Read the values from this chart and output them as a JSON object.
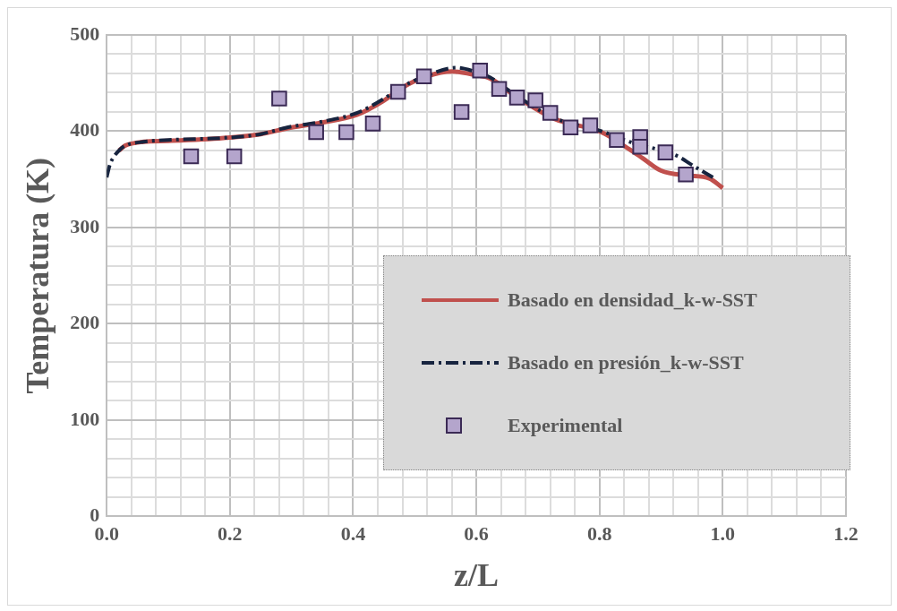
{
  "chart_data": {
    "type": "line",
    "xlabel": "z/L",
    "ylabel": "Temperatura (K)",
    "xlim": [
      0,
      1.2
    ],
    "ylim": [
      0,
      500
    ],
    "xticks": [
      {
        "value": 0,
        "label": "0.0"
      },
      {
        "value": 0.04,
        "label": null
      },
      {
        "value": 0.08,
        "label": null
      },
      {
        "value": 0.12,
        "label": null
      },
      {
        "value": 0.16,
        "label": null
      },
      {
        "value": 0.2,
        "label": "0.2"
      },
      {
        "value": 0.24,
        "label": null
      },
      {
        "value": 0.28,
        "label": null
      },
      {
        "value": 0.32,
        "label": null
      },
      {
        "value": 0.36,
        "label": null
      },
      {
        "value": 0.4,
        "label": "0.4"
      },
      {
        "value": 0.44,
        "label": null
      },
      {
        "value": 0.48,
        "label": null
      },
      {
        "value": 0.52,
        "label": null
      },
      {
        "value": 0.56,
        "label": null
      },
      {
        "value": 0.6,
        "label": "0.6"
      },
      {
        "value": 0.64,
        "label": null
      },
      {
        "value": 0.68,
        "label": null
      },
      {
        "value": 0.72,
        "label": null
      },
      {
        "value": 0.76,
        "label": null
      },
      {
        "value": 0.8,
        "label": "0.8"
      },
      {
        "value": 0.84,
        "label": null
      },
      {
        "value": 0.88,
        "label": null
      },
      {
        "value": 0.92,
        "label": null
      },
      {
        "value": 0.96,
        "label": null
      },
      {
        "value": 1.0,
        "label": "1.0"
      },
      {
        "value": 1.04,
        "label": null
      },
      {
        "value": 1.08,
        "label": null
      },
      {
        "value": 1.12,
        "label": null
      },
      {
        "value": 1.16,
        "label": null
      },
      {
        "value": 1.2,
        "label": "1.2"
      }
    ],
    "yticks": [
      0,
      {
        "value": 20,
        "label": null
      },
      {
        "value": 40,
        "label": null
      },
      {
        "value": 60,
        "label": null
      },
      {
        "value": 80,
        "label": null
      },
      100,
      {
        "value": 120,
        "label": null
      },
      {
        "value": 140,
        "label": null
      },
      {
        "value": 160,
        "label": null
      },
      {
        "value": 180,
        "label": null
      },
      200,
      {
        "value": 220,
        "label": null
      },
      {
        "value": 240,
        "label": null
      },
      {
        "value": 260,
        "label": null
      },
      {
        "value": 280,
        "label": null
      },
      300,
      {
        "value": 320,
        "label": null
      },
      {
        "value": 340,
        "label": null
      },
      {
        "value": 360,
        "label": null
      },
      {
        "value": 380,
        "label": null
      },
      400,
      {
        "value": 420,
        "label": null
      },
      {
        "value": 440,
        "label": null
      },
      {
        "value": 460,
        "label": null
      },
      {
        "value": 480,
        "label": null
      },
      500
    ],
    "grid": true,
    "legend": "bottom right",
    "series": [
      {
        "name": "Basado en densidad_k-w-SST",
        "color": "#c0504d",
        "marker": "none",
        "line_style": "solid",
        "x": [
          0.02,
          0.03,
          0.06,
          0.1,
          0.19,
          0.25,
          0.293,
          0.35,
          0.406,
          0.448,
          0.479,
          0.52,
          0.561,
          0.602,
          0.622,
          0.66,
          0.726,
          0.803,
          0.849,
          0.87,
          0.9,
          0.942,
          0.978,
          1.0
        ],
        "values": [
          380,
          385,
          389,
          390,
          393,
          397,
          403,
          409,
          417,
          431,
          445,
          457,
          462,
          458,
          455,
          438,
          413,
          399,
          381,
          372,
          359,
          354,
          351,
          341
        ]
      },
      {
        "name": "Basado en presión_k-w-SST",
        "color": "#17243f",
        "marker": "none",
        "line_style": "dashed",
        "x": [
          0,
          0.005,
          0.01,
          0.02,
          0.03,
          0.06,
          0.1,
          0.19,
          0.25,
          0.293,
          0.35,
          0.406,
          0.448,
          0.479,
          0.52,
          0.567,
          0.602,
          0.622,
          0.66,
          0.726,
          0.803,
          0.849,
          0.927,
          0.95,
          0.984
        ],
        "values": [
          352,
          365,
          372,
          380,
          385,
          389,
          391,
          393,
          397,
          404,
          410,
          419,
          433,
          446,
          458,
          466,
          461,
          456,
          439,
          414,
          400,
          389,
          374,
          365,
          352
        ]
      },
      {
        "name": "Experimental",
        "type": "scatter",
        "color": "#b4a5cc",
        "marker": "square",
        "x": [
          0.137,
          0.207,
          0.28,
          0.34,
          0.389,
          0.432,
          0.473,
          0.515,
          0.576,
          0.606,
          0.637,
          0.666,
          0.696,
          0.72,
          0.753,
          0.785,
          0.828,
          0.866,
          0.866,
          0.907,
          0.94
        ],
        "values": [
          374,
          374,
          434,
          399,
          399,
          408,
          441,
          457,
          420,
          463,
          444,
          435,
          432,
          419,
          404,
          406,
          391,
          394,
          384,
          378,
          355
        ]
      }
    ]
  }
}
